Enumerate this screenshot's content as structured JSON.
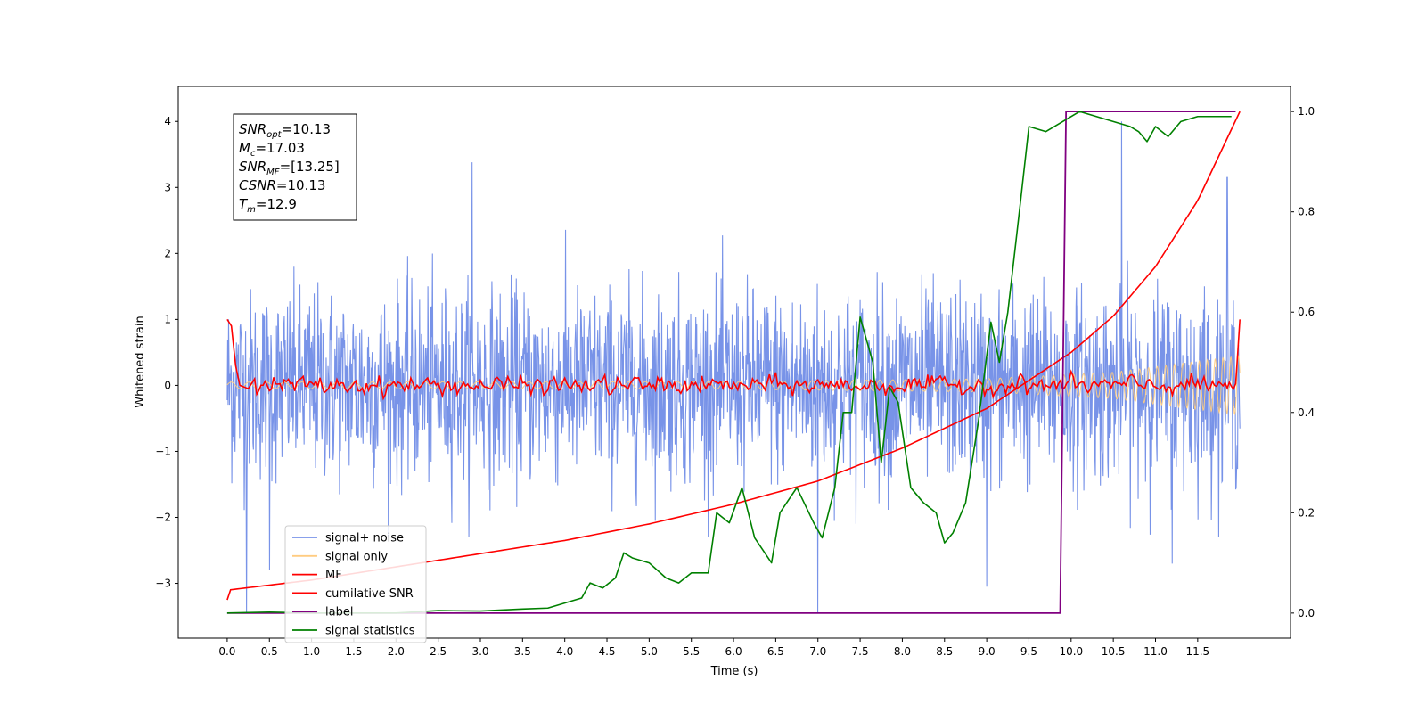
{
  "chart_data": {
    "type": "line",
    "xlabel": "Time (s)",
    "ylabel": "Whitened strain",
    "xlim": [
      -0.58,
      12.6
    ],
    "ylim_left": [
      -3.83,
      4.53
    ],
    "ylim_right": [
      -0.05,
      1.05
    ],
    "x_ticks": [
      "0.0",
      "0.5",
      "1.0",
      "1.5",
      "2.0",
      "2.5",
      "3.0",
      "3.5",
      "4.0",
      "4.5",
      "5.0",
      "5.5",
      "6.0",
      "6.5",
      "7.0",
      "7.5",
      "8.0",
      "8.5",
      "9.0",
      "9.5",
      "10.0",
      "10.5",
      "11.0",
      "11.5"
    ],
    "y_ticks_left": [
      "−3",
      "−2",
      "−1",
      "0",
      "1",
      "2",
      "3",
      "4"
    ],
    "y_ticks_right": [
      "0.0",
      "0.2",
      "0.4",
      "0.6",
      "0.8",
      "1.0"
    ],
    "annotation": {
      "lines": [
        {
          "main": "SNR",
          "sub": "opt",
          "rest": "=10.13"
        },
        {
          "main": "M",
          "sub": "c",
          "rest": "=17.03"
        },
        {
          "main": "SNR",
          "sub": "MF",
          "rest": "=[13.25]"
        },
        {
          "main": "CSNR",
          "sub": "",
          "rest": "=10.13"
        },
        {
          "main": "T",
          "sub": "m",
          "rest": "=12.9"
        }
      ]
    },
    "legend_position": "lower-left",
    "legend": [
      {
        "label": "signal+ noise",
        "color": "#7893e8"
      },
      {
        "label": "signal only",
        "color": "#ffcc80"
      },
      {
        "label": "MF",
        "color": "#ff0000"
      },
      {
        "label": "cumilative SNR",
        "color": "#ff0000"
      },
      {
        "label": "label",
        "color": "#800080"
      },
      {
        "label": "signal statistics",
        "color": "#008000"
      }
    ],
    "series": [
      {
        "axis": "left",
        "color": "#7893e8",
        "description": "noisy whitened strain, dense oscillation between about -2.2 and 2.4 with spikes to 3.4 and -3.45",
        "x_range": [
          0.0,
          12.0
        ],
        "typical_range": [
          -1.8,
          1.9
        ],
        "spikes": [
          [
            0.23,
            -3.45
          ],
          [
            2.9,
            3.38
          ],
          [
            7.0,
            -3.45
          ],
          [
            10.6,
            4.0
          ],
          [
            11.85,
            3.15
          ],
          [
            9.0,
            -3.05
          ],
          [
            0.5,
            -2.8
          ],
          [
            11.2,
            -2.7
          ]
        ]
      },
      {
        "axis": "left",
        "color": "#ffcc80",
        "description": "chirp signal with amplitude growing from about 0.05 to 0.45",
        "x_range": [
          0.0,
          12.0
        ],
        "amplitude_points": [
          [
            0.0,
            0.05
          ],
          [
            6.0,
            0.06
          ],
          [
            9.0,
            0.1
          ],
          [
            10.5,
            0.2
          ],
          [
            12.0,
            0.45
          ]
        ]
      },
      {
        "axis": "left",
        "color": "#ff0000",
        "description": "matched filter output, fluctuating near 0 with ends at 1.0",
        "x_range": [
          0.0,
          12.0
        ],
        "points": [
          [
            0.0,
            1.0
          ],
          [
            0.05,
            0.9
          ],
          [
            0.1,
            0.3
          ],
          [
            0.15,
            0.0
          ],
          [
            0.25,
            -0.05
          ],
          [
            0.35,
            0.15
          ],
          [
            12.0,
            1.0
          ]
        ],
        "noise_amplitude": 0.08
      },
      {
        "axis": "left",
        "color": "#ff0000",
        "description": "cumulative SNR rising exponentially",
        "points": [
          [
            0.0,
            -3.25
          ],
          [
            0.02,
            -3.1
          ],
          [
            1.0,
            -2.95
          ],
          [
            2.0,
            -2.75
          ],
          [
            3.0,
            -2.55
          ],
          [
            4.0,
            -2.35
          ],
          [
            5.0,
            -2.1
          ],
          [
            6.0,
            -1.8
          ],
          [
            7.0,
            -1.45
          ],
          [
            8.0,
            -0.95
          ],
          [
            9.0,
            -0.35
          ],
          [
            10.0,
            0.5
          ],
          [
            10.5,
            1.05
          ],
          [
            11.0,
            1.8
          ],
          [
            11.5,
            2.8
          ],
          [
            12.0,
            4.15
          ]
        ]
      },
      {
        "axis": "right",
        "color": "#800080",
        "description": "label step function",
        "points": [
          [
            0.0,
            0.0
          ],
          [
            9.87,
            0.0
          ],
          [
            9.94,
            1.0
          ],
          [
            11.95,
            1.0
          ]
        ]
      },
      {
        "axis": "right",
        "color": "#008000",
        "description": "signal statistics",
        "points": [
          [
            0.0,
            0.0
          ],
          [
            0.5,
            0.002
          ],
          [
            1.0,
            0.0
          ],
          [
            2.0,
            0.0
          ],
          [
            2.5,
            0.005
          ],
          [
            3.0,
            0.004
          ],
          [
            3.5,
            0.008
          ],
          [
            3.8,
            0.01
          ],
          [
            4.0,
            0.02
          ],
          [
            4.2,
            0.03
          ],
          [
            4.3,
            0.06
          ],
          [
            4.45,
            0.05
          ],
          [
            4.6,
            0.07
          ],
          [
            4.7,
            0.12
          ],
          [
            4.8,
            0.11
          ],
          [
            5.0,
            0.1
          ],
          [
            5.2,
            0.07
          ],
          [
            5.35,
            0.06
          ],
          [
            5.5,
            0.08
          ],
          [
            5.7,
            0.08
          ],
          [
            5.8,
            0.2
          ],
          [
            5.95,
            0.18
          ],
          [
            6.1,
            0.25
          ],
          [
            6.25,
            0.15
          ],
          [
            6.45,
            0.1
          ],
          [
            6.55,
            0.2
          ],
          [
            6.75,
            0.25
          ],
          [
            6.95,
            0.18
          ],
          [
            7.05,
            0.15
          ],
          [
            7.2,
            0.25
          ],
          [
            7.3,
            0.4
          ],
          [
            7.4,
            0.4
          ],
          [
            7.5,
            0.59
          ],
          [
            7.65,
            0.5
          ],
          [
            7.75,
            0.3
          ],
          [
            7.85,
            0.45
          ],
          [
            7.95,
            0.42
          ],
          [
            8.1,
            0.25
          ],
          [
            8.25,
            0.22
          ],
          [
            8.4,
            0.2
          ],
          [
            8.5,
            0.14
          ],
          [
            8.6,
            0.16
          ],
          [
            8.75,
            0.22
          ],
          [
            8.9,
            0.38
          ],
          [
            9.05,
            0.58
          ],
          [
            9.15,
            0.5
          ],
          [
            9.25,
            0.6
          ],
          [
            9.4,
            0.82
          ],
          [
            9.5,
            0.97
          ],
          [
            9.7,
            0.96
          ],
          [
            9.9,
            0.98
          ],
          [
            10.1,
            1.0
          ],
          [
            10.3,
            0.99
          ],
          [
            10.5,
            0.98
          ],
          [
            10.7,
            0.97
          ],
          [
            10.8,
            0.96
          ],
          [
            10.9,
            0.94
          ],
          [
            11.0,
            0.97
          ],
          [
            11.15,
            0.95
          ],
          [
            11.3,
            0.98
          ],
          [
            11.5,
            0.99
          ],
          [
            11.7,
            0.99
          ],
          [
            11.9,
            0.99
          ]
        ]
      }
    ]
  }
}
